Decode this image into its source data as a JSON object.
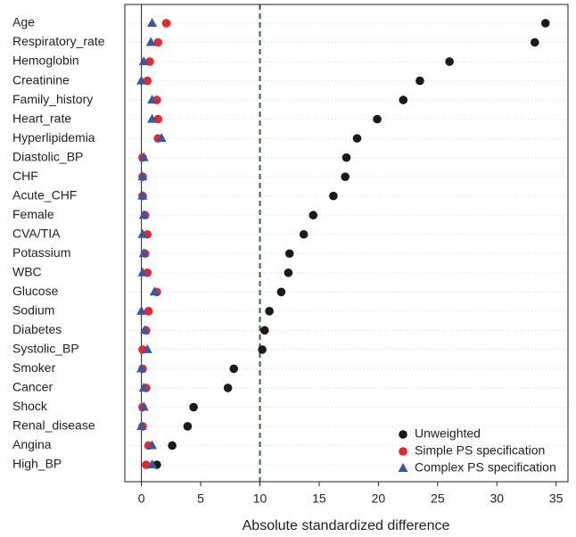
{
  "chart_data": {
    "type": "dot",
    "xlabel": "Absolute standardized difference",
    "categories": [
      "Age",
      "Respiratory_rate",
      "Hemoglobin",
      "Creatinine",
      "Family_history",
      "Heart_rate",
      "Hyperlipidemia",
      "Diastolic_BP",
      "CHF",
      "Acute_CHF",
      "Female",
      "CVA/TIA",
      "Potassium",
      "WBC",
      "Glucose",
      "Sodium",
      "Diabetes",
      "Systolic_BP",
      "Smoker",
      "Cancer",
      "Shock",
      "Renal_disease",
      "Angina",
      "High_BP"
    ],
    "series": [
      {
        "name": "Unweighted",
        "color": "#1a1a1a",
        "marker": "circle",
        "values": [
          34.1,
          33.2,
          26,
          23.5,
          22.1,
          19.9,
          18.2,
          17.3,
          17.2,
          16.2,
          14.5,
          13.7,
          12.5,
          12.4,
          11.8,
          10.8,
          10.4,
          10.2,
          7.8,
          7.3,
          4.4,
          3.9,
          2.6,
          1.3
        ]
      },
      {
        "name": "Simple PS specification",
        "color": "#e8262b",
        "marker": "circle",
        "values": [
          2.1,
          1.4,
          0.7,
          0.5,
          1.3,
          1.4,
          1.4,
          0.1,
          0.1,
          0.1,
          0.3,
          0.5,
          0.3,
          0.5,
          1.3,
          0.6,
          0.4,
          0.1,
          0.1,
          0.4,
          0.1,
          0.1,
          0.6,
          0.4
        ]
      },
      {
        "name": "Complex PS specification",
        "color": "#3a56a8",
        "marker": "triangle",
        "values": [
          0.9,
          0.8,
          0.2,
          0,
          0.9,
          0.9,
          1.7,
          0.2,
          0.1,
          0.1,
          0.2,
          0.1,
          0.2,
          0.1,
          1.1,
          0,
          0.3,
          0.5,
          0,
          0.2,
          0.2,
          0,
          0.9,
          0.9
        ]
      }
    ],
    "xlim": [
      -1.4,
      36
    ],
    "xticks": [
      0,
      5,
      10,
      15,
      20,
      25,
      30,
      35
    ],
    "reference_line": 10,
    "reference_color": "#2e6b2e",
    "grid": true,
    "legend": "lower right"
  }
}
